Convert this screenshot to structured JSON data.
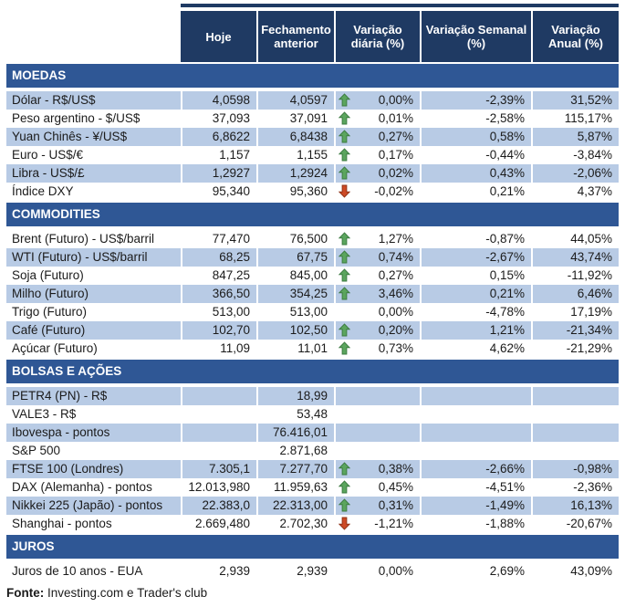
{
  "chart_data": {
    "type": "table",
    "columns": [
      "Hoje",
      "Fechamento anterior",
      "Variação diária (%)",
      "Variação Semanal (%)",
      "Variação Anual (%)"
    ],
    "sections": [
      {
        "id": "moedas",
        "title": "MOEDAS",
        "first_row_shaded": true,
        "rows": [
          {
            "label": "Dólar - R$/US$",
            "hoje": "4,0598",
            "anterior": "4,0597",
            "arrow": "up",
            "diaria": "0,00%",
            "semanal": "-2,39%",
            "anual": "31,52%"
          },
          {
            "label": "Peso argentino - $/US$",
            "hoje": "37,093",
            "anterior": "37,091",
            "arrow": "up",
            "diaria": "0,01%",
            "semanal": "-2,58%",
            "anual": "115,17%"
          },
          {
            "label": "Yuan Chinês - ¥/US$",
            "hoje": "6,8622",
            "anterior": "6,8438",
            "arrow": "up",
            "diaria": "0,27%",
            "semanal": "0,58%",
            "anual": "5,87%"
          },
          {
            "label": "Euro - US$/€",
            "hoje": "1,157",
            "anterior": "1,155",
            "arrow": "up",
            "diaria": "0,17%",
            "semanal": "-0,44%",
            "anual": "-3,84%"
          },
          {
            "label": "Libra - US$/£",
            "hoje": "1,2927",
            "anterior": "1,2924",
            "arrow": "up",
            "diaria": "0,02%",
            "semanal": "0,43%",
            "anual": "-2,06%"
          },
          {
            "label": "Índice DXY",
            "hoje": "95,340",
            "anterior": "95,360",
            "arrow": "down",
            "diaria": "-0,02%",
            "semanal": "0,21%",
            "anual": "4,37%"
          }
        ]
      },
      {
        "id": "commodities",
        "title": "COMMODITIES",
        "first_row_shaded": false,
        "rows": [
          {
            "label": "Brent (Futuro) - US$/barril",
            "hoje": "77,470",
            "anterior": "76,500",
            "arrow": "up",
            "diaria": "1,27%",
            "semanal": "-0,87%",
            "anual": "44,05%"
          },
          {
            "label": "WTI (Futuro) - US$/barril",
            "hoje": "68,25",
            "anterior": "67,75",
            "arrow": "up",
            "diaria": "0,74%",
            "semanal": "-2,67%",
            "anual": "43,74%"
          },
          {
            "label": "Soja (Futuro)",
            "hoje": "847,25",
            "anterior": "845,00",
            "arrow": "up",
            "diaria": "0,27%",
            "semanal": "0,15%",
            "anual": "-11,92%"
          },
          {
            "label": "Milho (Futuro)",
            "hoje": "366,50",
            "anterior": "354,25",
            "arrow": "up",
            "diaria": "3,46%",
            "semanal": "0,21%",
            "anual": "6,46%"
          },
          {
            "label": "Trigo (Futuro)",
            "hoje": "513,00",
            "anterior": "513,00",
            "arrow": "",
            "diaria": "0,00%",
            "semanal": "-4,78%",
            "anual": "17,19%"
          },
          {
            "label": "Café (Futuro)",
            "hoje": "102,70",
            "anterior": "102,50",
            "arrow": "up",
            "diaria": "0,20%",
            "semanal": "1,21%",
            "anual": "-21,34%"
          },
          {
            "label": "Açúcar (Futuro)",
            "hoje": "11,09",
            "anterior": "11,01",
            "arrow": "up",
            "diaria": "0,73%",
            "semanal": "4,62%",
            "anual": "-21,29%"
          }
        ]
      },
      {
        "id": "bolsas-e-acoes",
        "title": "BOLSAS E AÇÕES",
        "first_row_shaded": true,
        "rows": [
          {
            "label": "PETR4 (PN) - R$",
            "hoje": "",
            "anterior": "18,99",
            "arrow": "",
            "diaria": "",
            "semanal": "",
            "anual": ""
          },
          {
            "label": "VALE3 - R$",
            "hoje": "",
            "anterior": "53,48",
            "arrow": "",
            "diaria": "",
            "semanal": "",
            "anual": ""
          },
          {
            "label": "Ibovespa - pontos",
            "hoje": "",
            "anterior": "76.416,01",
            "arrow": "",
            "diaria": "",
            "semanal": "",
            "anual": ""
          },
          {
            "label": "S&P 500",
            "hoje": "",
            "anterior": "2.871,68",
            "arrow": "",
            "diaria": "",
            "semanal": "",
            "anual": ""
          },
          {
            "label": "FTSE 100 (Londres)",
            "hoje": "7.305,1",
            "anterior": "7.277,70",
            "arrow": "up",
            "diaria": "0,38%",
            "semanal": "-2,66%",
            "anual": "-0,98%"
          },
          {
            "label": "DAX (Alemanha) - pontos",
            "hoje": "12.013,980",
            "anterior": "11.959,63",
            "arrow": "up",
            "diaria": "0,45%",
            "semanal": "-4,51%",
            "anual": "-2,36%"
          },
          {
            "label": "Nikkei 225 (Japão) - pontos",
            "hoje": "22.383,0",
            "anterior": "22.313,00",
            "arrow": "up",
            "diaria": "0,31%",
            "semanal": "-1,49%",
            "anual": "16,13%"
          },
          {
            "label": "Shanghai - pontos",
            "hoje": "2.669,480",
            "anterior": "2.702,30",
            "arrow": "down",
            "diaria": "-1,21%",
            "semanal": "-1,88%",
            "anual": "-20,67%"
          }
        ]
      },
      {
        "id": "juros",
        "title": "JUROS",
        "first_row_shaded": false,
        "rows": [
          {
            "label": "Juros de 10 anos - EUA",
            "hoje": "2,939",
            "anterior": "2,939",
            "arrow": "",
            "diaria": "0,00%",
            "semanal": "2,69%",
            "anual": "43,09%"
          }
        ]
      }
    ]
  },
  "footer": {
    "label": "Fonte:",
    "text": "Investing.com e Trader's club"
  },
  "colors": {
    "header_bg": "#1f3a63",
    "section_bg": "#2f5795",
    "row_shaded": "#b8cbe5",
    "arrow_up_fill": "#5ba55e",
    "arrow_up_stroke": "#3b7a40",
    "arrow_down_fill": "#cd4a26",
    "arrow_down_stroke": "#8f3115"
  },
  "icons": {
    "up": "up-arrow-icon",
    "down": "down-arrow-icon"
  }
}
